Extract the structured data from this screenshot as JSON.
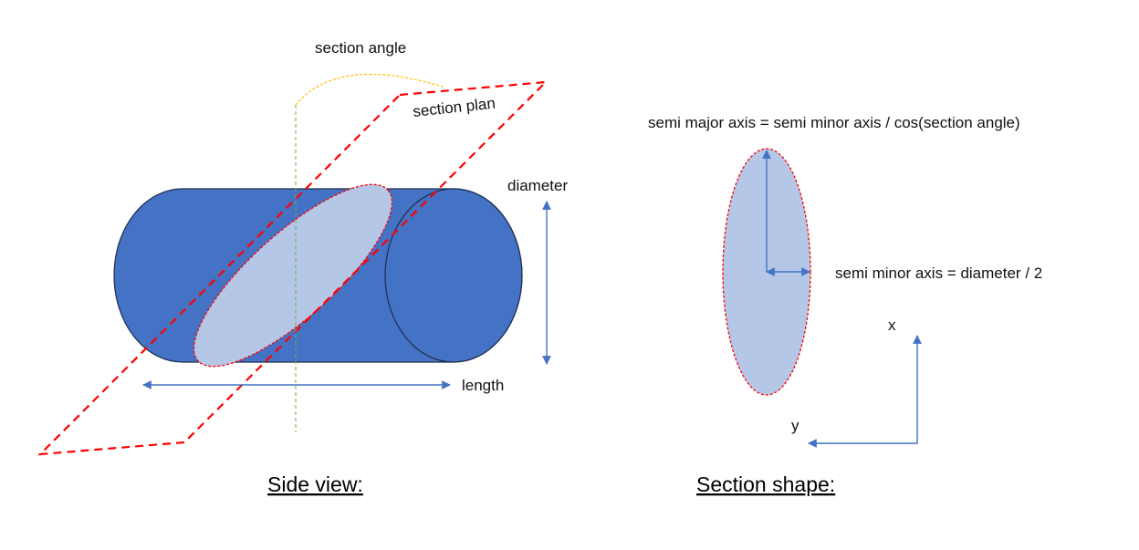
{
  "labels": {
    "section_angle": "section angle",
    "section_plan": "section plan",
    "diameter": "diameter",
    "length": "length",
    "semi_major_formula": "semi major axis  = semi minor axis / cos(section angle)",
    "semi_minor_formula": "semi minor axis = diameter / 2",
    "axis_x": "x",
    "axis_y": "y"
  },
  "captions": {
    "side_view": "Side view:",
    "section_shape": "Section shape:"
  },
  "colors": {
    "cylinder_fill": "#4472c4",
    "cylinder_stroke": "#1f2d4d",
    "section_fill": "#b4c7e7",
    "plane_dash": "#ff0000",
    "arrow": "#4472c4",
    "angle_arc": "#ffc000",
    "axis_line": "#70ad47"
  }
}
